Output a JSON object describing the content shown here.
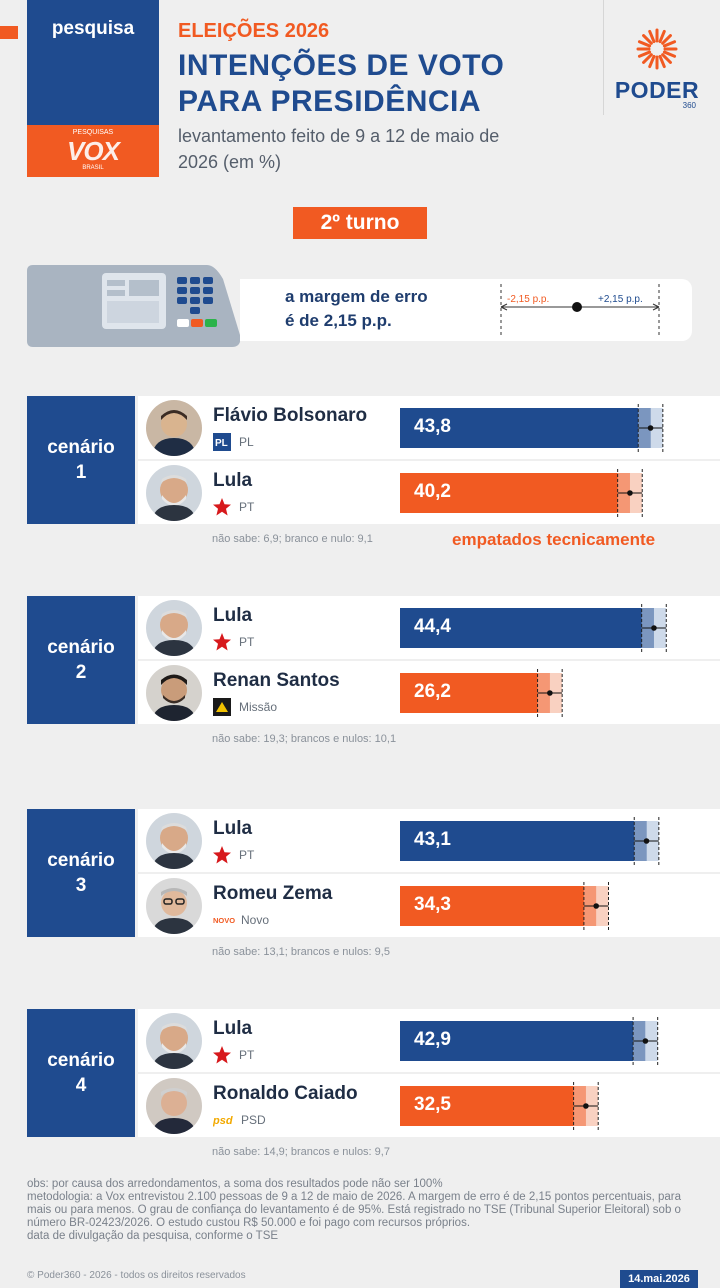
{
  "header": {
    "category": "pesquisa",
    "pollster": "VOX",
    "pollster_top": "PESQUISAS",
    "pollster_bottom": "BRASIL",
    "kicker": "ELEIÇÕES 2026",
    "title": "INTENÇÕES DE VOTO PARA PRESIDÊNCIA",
    "subtitle": "levantamento feito de  9 a 12 de maio de 2026 (em %)",
    "brand": "PODER",
    "brand_sub": "360"
  },
  "round_label": "2º turno",
  "margin": {
    "text_line1": "a margem de erro",
    "text_line2": "é de 2,15 p.p.",
    "minus_label": "-2,15 p.p.",
    "plus_label": "+2,15 p.p."
  },
  "chart_data": {
    "type": "bar",
    "margin_of_error": 2.15,
    "scenarios": [
      {
        "label_word": "cenário",
        "label_num": "1",
        "candidates": [
          {
            "name": "Flávio Bolsonaro",
            "party": "PL",
            "party_icon": "pl-logo-icon",
            "value": 43.8,
            "value_label": "43,8",
            "color": "#1f4b8f"
          },
          {
            "name": "Lula",
            "party": "PT",
            "party_icon": "pt-star-icon",
            "value": 40.2,
            "value_label": "40,2",
            "color": "#f15a22"
          }
        ],
        "note": "não sabe: 6,9; branco e nulo: 9,1",
        "tie_label": "empatados tecnicamente"
      },
      {
        "label_word": "cenário",
        "label_num": "2",
        "candidates": [
          {
            "name": "Lula",
            "party": "PT",
            "party_icon": "pt-star-icon",
            "value": 44.4,
            "value_label": "44,4",
            "color": "#1f4b8f"
          },
          {
            "name": "Renan Santos",
            "party": "Missão",
            "party_icon": "missao-logo-icon",
            "value": 26.2,
            "value_label": "26,2",
            "color": "#f15a22"
          }
        ],
        "note": "não sabe: 19,3; brancos e nulos: 10,1"
      },
      {
        "label_word": "cenário",
        "label_num": "3",
        "candidates": [
          {
            "name": "Lula",
            "party": "PT",
            "party_icon": "pt-star-icon",
            "value": 43.1,
            "value_label": "43,1",
            "color": "#1f4b8f"
          },
          {
            "name": "Romeu Zema",
            "party": "Novo",
            "party_icon": "novo-logo-icon",
            "value": 34.3,
            "value_label": "34,3",
            "color": "#f15a22"
          }
        ],
        "note": "não sabe: 13,1; brancos e nulos: 9,5"
      },
      {
        "label_word": "cenário",
        "label_num": "4",
        "candidates": [
          {
            "name": "Lula",
            "party": "PT",
            "party_icon": "pt-star-icon",
            "value": 42.9,
            "value_label": "42,9",
            "color": "#1f4b8f"
          },
          {
            "name": "Ronaldo Caiado",
            "party": "PSD",
            "party_icon": "psd-logo-icon",
            "value": 32.5,
            "value_label": "32,5",
            "color": "#f15a22"
          }
        ],
        "note": "não sabe: 14,9; brancos e nulos: 9,7"
      }
    ]
  },
  "footer": {
    "obs": "obs: por causa dos arredondamentos, a soma dos resultados pode não ser 100%",
    "methodology": "metodologia: a Vox entrevistou 2.100 pessoas de 9 a 12 de maio de 2026. A margem de erro é de 2,15 pontos percentuais, para mais ou para menos. O grau de confiança do levantamento é de 95%. Está registrado no TSE (Tribunal Superior Eleitoral) sob o número BR-02423/2026. O estudo custou R$ 50.000 e foi pago com recursos próprios.",
    "release_note": "data de divulgação da pesquisa, conforme o TSE",
    "copyright": "© Poder360 - 2026 - todos os direitos reservados",
    "date": "14.mai.2026"
  },
  "colors": {
    "navy": "#1f4b8f",
    "orange": "#f15a22",
    "light_navy": "#c5d3e6",
    "light_orange": "#f8c9b6"
  }
}
